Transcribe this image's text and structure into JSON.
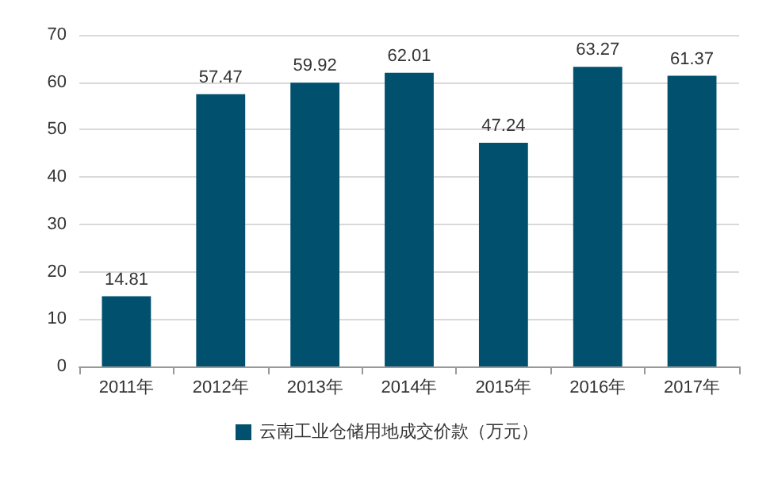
{
  "chart_data": {
    "type": "bar",
    "categories": [
      "2011年",
      "2012年",
      "2013年",
      "2014年",
      "2015年",
      "2016年",
      "2017年"
    ],
    "series": [
      {
        "name": "云南工业仓储用地成交价款（万元）",
        "color": "#00506e",
        "values": [
          14.81,
          57.47,
          59.92,
          62.01,
          47.24,
          63.27,
          61.37
        ]
      }
    ],
    "ylim": [
      0,
      70
    ],
    "yticks": [
      0,
      10,
      20,
      30,
      40,
      50,
      60,
      70
    ],
    "grid": "y",
    "legend": "bottom",
    "data_labels": true
  }
}
